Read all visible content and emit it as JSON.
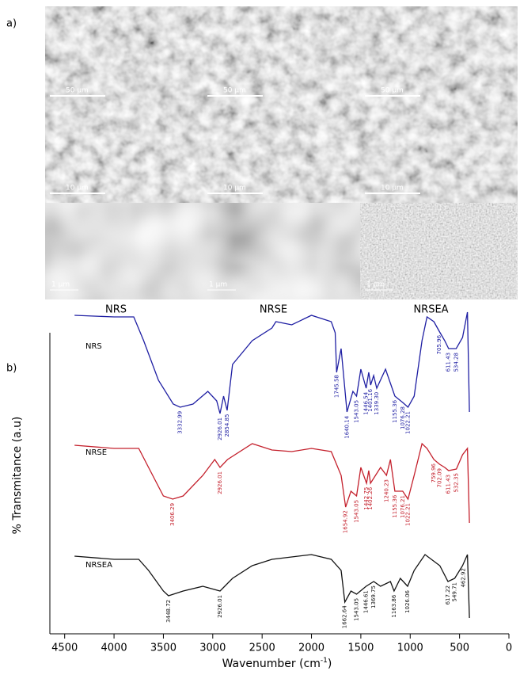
{
  "panel_a": {
    "label": "a)",
    "scale_bars": [
      "50 µm",
      "10 µm",
      "1 µm"
    ],
    "columns": [
      "NRS",
      "NRSE",
      "NRSEA"
    ]
  },
  "panel_b": {
    "label": "b)"
  },
  "chart_data": {
    "type": "line",
    "xlabel": {
      "text": "Wavenumber (cm",
      "sup": "-1",
      "end": ")"
    },
    "ylabel": "% Transmitance (a.u)",
    "xlim": [
      4650,
      0
    ],
    "ylim": [
      0,
      100
    ],
    "xticks": [
      4500,
      4000,
      3500,
      3000,
      2500,
      2000,
      1500,
      1000,
      500,
      0
    ],
    "series": [
      {
        "name": "NRS",
        "color": "#1f1fa3",
        "x": [
          4400,
          4000,
          3800,
          3700,
          3550,
          3400,
          3330,
          3200,
          3050,
          2960,
          2926,
          2890,
          2854,
          2800,
          2600,
          2400,
          2360,
          2200,
          2000,
          1800,
          1760,
          1745,
          1700,
          1640,
          1580,
          1543,
          1500,
          1446,
          1420,
          1401,
          1370,
          1339,
          1250,
          1155,
          1076,
          1022,
          960,
          880,
          830,
          760,
          706,
          650,
          611,
          534,
          470,
          420,
          400
        ],
        "values": [
          98,
          97.5,
          97.5,
          90,
          77.5,
          70,
          69,
          70,
          74,
          71,
          67,
          72.5,
          68,
          82.5,
          90,
          94,
          96,
          95,
          98,
          96,
          92.5,
          80,
          87.5,
          67.5,
          74,
          72.5,
          81,
          75,
          80,
          76,
          79,
          75,
          81,
          72.5,
          70.5,
          69,
          72.5,
          90,
          97.5,
          96,
          93,
          90,
          87.5,
          87.5,
          91,
          99,
          67.5
        ],
        "peaks": [
          3332.99,
          2926.01,
          2854.85,
          1745.58,
          1640.14,
          1543.05,
          1446.54,
          1401.16,
          {
            "value": 1339.3,
            "label": "1339.30"
          },
          1155.36,
          1076.28,
          1022.21,
          705.96,
          611.43,
          534.28
        ]
      },
      {
        "name": "NRSE",
        "color": "#c4202c",
        "x": [
          4400,
          4000,
          3750,
          3650,
          3500,
          3406,
          3300,
          3100,
          2980,
          2926,
          2850,
          2600,
          2400,
          2200,
          2000,
          1800,
          1700,
          1654,
          1600,
          1543,
          1500,
          1442,
          1420,
          1402,
          1300,
          1240,
          1200,
          1155,
          1076,
          1022,
          960,
          880,
          830,
          760,
          702,
          650,
          611,
          532,
          470,
          420,
          400
        ],
        "values": [
          57,
          56,
          56,
          50,
          41,
          40,
          41,
          47.5,
          52.5,
          50,
          52.5,
          57.5,
          55.5,
          55,
          56,
          55,
          47.5,
          37.5,
          42.5,
          41,
          50,
          45,
          49,
          45,
          50,
          47.5,
          52.5,
          42.5,
          42.5,
          40,
          47.5,
          57.5,
          56,
          52.5,
          51,
          50,
          49,
          49.5,
          54,
          56,
          32.5
        ],
        "peaks": [
          3406.29,
          2926.01,
          1654.92,
          1543.05,
          1442.75,
          1402.26,
          1240.23,
          1155.36,
          1076.21,
          1022.21,
          759.96,
          702.09,
          611.43,
          532.35
        ]
      },
      {
        "name": "NRSEA",
        "color": "#111111",
        "x": [
          4400,
          4000,
          3750,
          3650,
          3500,
          3448,
          3300,
          3100,
          2926,
          2800,
          2600,
          2400,
          2000,
          1800,
          1700,
          1662,
          1600,
          1543,
          1446,
          1369,
          1300,
          1200,
          1163,
          1100,
          1026,
          960,
          850,
          700,
          617,
          549,
          470,
          420,
          400
        ],
        "values": [
          22,
          21,
          21,
          17.5,
          11,
          9.5,
          11,
          12.5,
          11,
          15,
          19,
          21,
          22.5,
          21,
          17.5,
          7.5,
          11,
          10,
          12.5,
          14,
          12.5,
          14,
          11,
          15,
          12.5,
          17.5,
          22.5,
          19,
          14,
          15,
          19,
          22.5,
          2.5
        ],
        "peaks": [
          3448.72,
          2926.01,
          1662.64,
          1543.05,
          1446.61,
          1369.75,
          1163.86,
          1026.06,
          617.22,
          549.71,
          462.92
        ]
      }
    ]
  }
}
